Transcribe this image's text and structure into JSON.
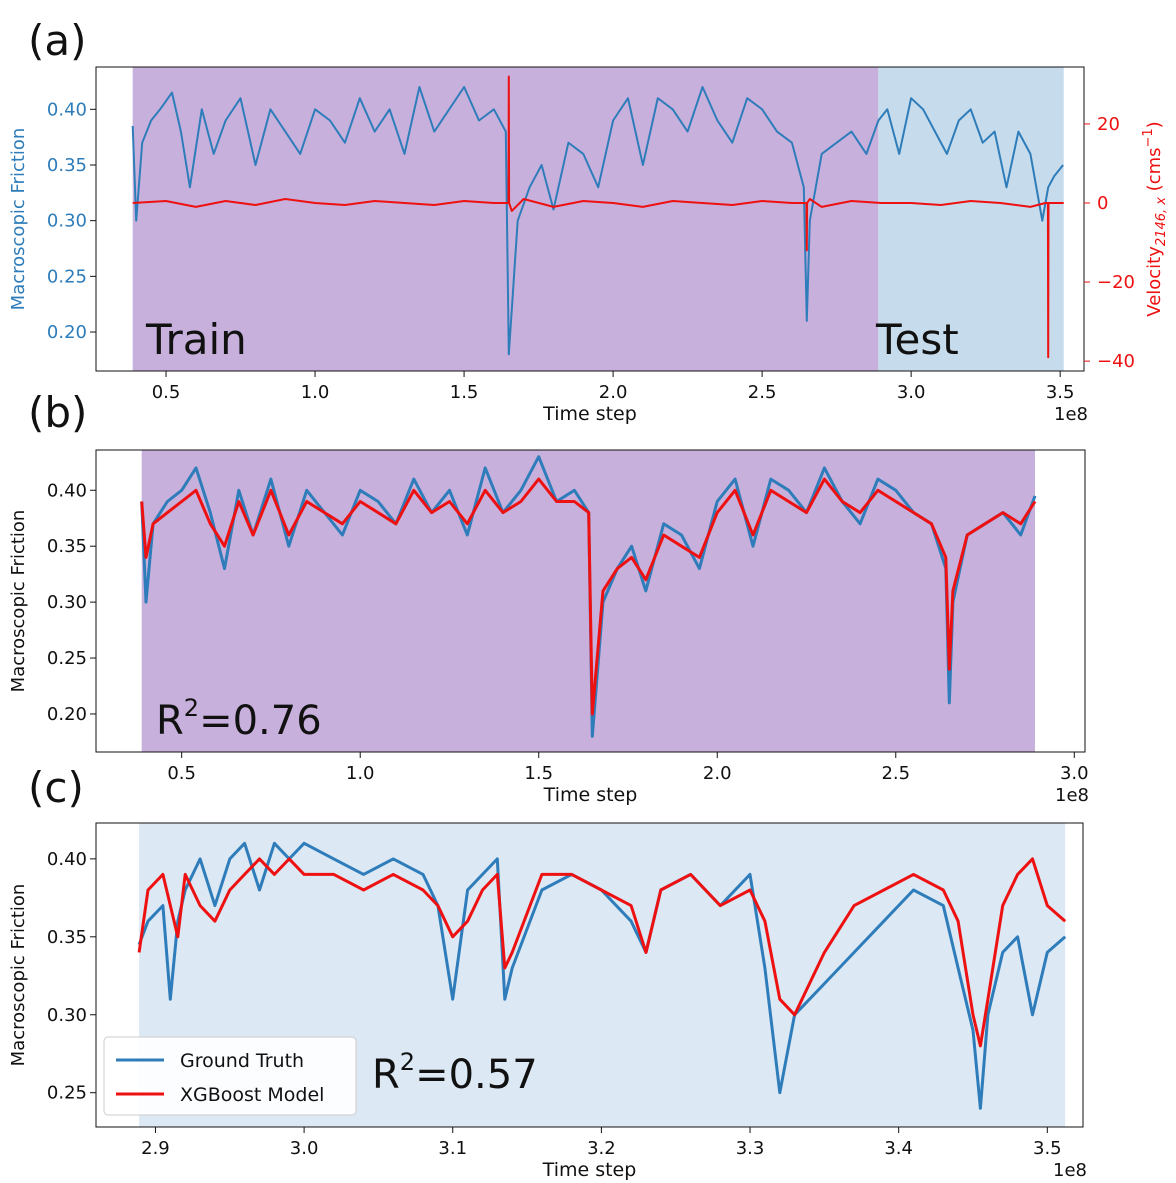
{
  "panels": [
    {
      "letter": "(a)",
      "chart_data": {
        "type": "line",
        "xlabel": "Time step",
        "x_scale_label": "1e8",
        "xlim": [
          0.265,
          3.58
        ],
        "xticks": [
          0.5,
          1.0,
          1.5,
          2.0,
          2.5,
          3.0,
          3.5
        ],
        "xtick_labels": [
          "0.5",
          "1.0",
          "1.5",
          "2.0",
          "2.5",
          "3.0",
          "3.5"
        ],
        "ylabel": "Macroscopic Friction",
        "ylim": [
          0.165,
          0.438
        ],
        "yticks": [
          0.2,
          0.25,
          0.3,
          0.35,
          0.4
        ],
        "ytick_labels": [
          "0.20",
          "0.25",
          "0.30",
          "0.35",
          "0.40"
        ],
        "y2label": "Velocity",
        "y2label_sub": "2146, x",
        "y2label_unit": "cms",
        "y2label_unit_sup": "−1",
        "y2lim": [
          -42.5,
          34.4
        ],
        "y2ticks": [
          -40,
          -20,
          0,
          20
        ],
        "y2tick_labels": [
          "−40",
          "−20",
          "0",
          "20"
        ],
        "regions": [
          {
            "label": "Train",
            "x0": 0.388,
            "x1": 2.89,
            "color": "#c8b0dc"
          },
          {
            "label": "Test",
            "x0": 2.89,
            "x1": 3.512,
            "color": "#c6dbeb"
          }
        ],
        "series": [
          {
            "color": "#2e7dba",
            "axis": "left",
            "x": [
              0.388,
              0.4,
              0.42,
              0.45,
              0.48,
              0.52,
              0.55,
              0.58,
              0.62,
              0.66,
              0.7,
              0.75,
              0.8,
              0.85,
              0.9,
              0.95,
              1.0,
              1.05,
              1.1,
              1.15,
              1.2,
              1.25,
              1.3,
              1.35,
              1.4,
              1.45,
              1.5,
              1.55,
              1.6,
              1.64,
              1.65,
              1.68,
              1.72,
              1.76,
              1.8,
              1.85,
              1.9,
              1.95,
              2.0,
              2.05,
              2.1,
              2.15,
              2.2,
              2.25,
              2.3,
              2.35,
              2.4,
              2.45,
              2.5,
              2.55,
              2.6,
              2.64,
              2.65,
              2.66,
              2.7,
              2.75,
              2.8,
              2.85,
              2.89,
              2.92,
              2.96,
              3.0,
              3.04,
              3.08,
              3.12,
              3.16,
              3.2,
              3.24,
              3.28,
              3.32,
              3.36,
              3.4,
              3.44,
              3.46,
              3.48,
              3.51
            ],
            "y": [
              0.385,
              0.3,
              0.37,
              0.39,
              0.4,
              0.415,
              0.38,
              0.33,
              0.4,
              0.36,
              0.39,
              0.41,
              0.35,
              0.4,
              0.38,
              0.36,
              0.4,
              0.39,
              0.37,
              0.41,
              0.38,
              0.4,
              0.36,
              0.42,
              0.38,
              0.4,
              0.42,
              0.39,
              0.4,
              0.38,
              0.18,
              0.3,
              0.33,
              0.35,
              0.31,
              0.37,
              0.36,
              0.33,
              0.39,
              0.41,
              0.35,
              0.41,
              0.4,
              0.38,
              0.42,
              0.39,
              0.37,
              0.41,
              0.4,
              0.38,
              0.37,
              0.33,
              0.21,
              0.3,
              0.36,
              0.37,
              0.38,
              0.36,
              0.39,
              0.4,
              0.36,
              0.41,
              0.4,
              0.38,
              0.36,
              0.39,
              0.4,
              0.37,
              0.38,
              0.33,
              0.38,
              0.36,
              0.3,
              0.33,
              0.34,
              0.35
            ]
          },
          {
            "color": "#ee1111",
            "axis": "right",
            "x": [
              0.388,
              0.5,
              0.6,
              0.7,
              0.8,
              0.9,
              1.0,
              1.1,
              1.2,
              1.3,
              1.4,
              1.5,
              1.6,
              1.64,
              1.649,
              1.65,
              1.651,
              1.66,
              1.7,
              1.8,
              1.9,
              2.0,
              2.1,
              2.2,
              2.3,
              2.4,
              2.5,
              2.6,
              2.64,
              2.649,
              2.65,
              2.651,
              2.66,
              2.7,
              2.8,
              2.9,
              3.0,
              3.1,
              3.2,
              3.3,
              3.4,
              3.45,
              3.459,
              3.46,
              3.461,
              3.47,
              3.512
            ],
            "y": [
              0,
              0.5,
              -1,
              0.5,
              -0.5,
              1,
              0,
              -0.5,
              0.5,
              0,
              -0.5,
              0.5,
              0,
              0,
              0,
              32,
              0,
              -2,
              1,
              -1,
              0.5,
              0,
              -1,
              0.5,
              0,
              -0.5,
              0.5,
              0,
              0,
              0,
              -12,
              0,
              1,
              -1,
              0.5,
              0,
              0,
              -0.5,
              0.5,
              0,
              -1,
              0,
              0,
              -39,
              0,
              0,
              0
            ]
          }
        ]
      }
    },
    {
      "letter": "(b)",
      "r2": "0.76",
      "chart_data": {
        "type": "line",
        "xlabel": "Time step",
        "x_scale_label": "1e8",
        "xlim": [
          0.26,
          3.03
        ],
        "xticks": [
          0.5,
          1.0,
          1.5,
          2.0,
          2.5,
          3.0
        ],
        "xtick_labels": [
          "0.5",
          "1.0",
          "1.5",
          "2.0",
          "2.5",
          "3.0"
        ],
        "ylabel": "Macroscopic Friction",
        "ylim": [
          0.166,
          0.436
        ],
        "yticks": [
          0.2,
          0.25,
          0.3,
          0.35,
          0.4
        ],
        "ytick_labels": [
          "0.20",
          "0.25",
          "0.30",
          "0.35",
          "0.40"
        ],
        "regions": [
          {
            "label": "",
            "x0": 0.388,
            "x1": 2.89,
            "color": "#c8b0dc"
          }
        ],
        "series": [
          {
            "color": "#2e7dba",
            "x": [
              0.388,
              0.4,
              0.42,
              0.46,
              0.5,
              0.54,
              0.58,
              0.62,
              0.66,
              0.7,
              0.75,
              0.8,
              0.85,
              0.9,
              0.95,
              1.0,
              1.05,
              1.1,
              1.15,
              1.2,
              1.25,
              1.3,
              1.35,
              1.4,
              1.45,
              1.5,
              1.55,
              1.6,
              1.64,
              1.65,
              1.68,
              1.72,
              1.76,
              1.8,
              1.85,
              1.9,
              1.95,
              2.0,
              2.05,
              2.1,
              2.15,
              2.2,
              2.25,
              2.3,
              2.35,
              2.4,
              2.45,
              2.5,
              2.55,
              2.6,
              2.64,
              2.65,
              2.66,
              2.7,
              2.75,
              2.8,
              2.85,
              2.89
            ],
            "y": [
              0.39,
              0.3,
              0.37,
              0.39,
              0.4,
              0.42,
              0.38,
              0.33,
              0.4,
              0.36,
              0.41,
              0.35,
              0.4,
              0.38,
              0.36,
              0.4,
              0.39,
              0.37,
              0.41,
              0.38,
              0.4,
              0.36,
              0.42,
              0.38,
              0.4,
              0.43,
              0.39,
              0.4,
              0.38,
              0.18,
              0.3,
              0.33,
              0.35,
              0.31,
              0.37,
              0.36,
              0.33,
              0.39,
              0.41,
              0.35,
              0.41,
              0.4,
              0.38,
              0.42,
              0.39,
              0.37,
              0.41,
              0.4,
              0.38,
              0.37,
              0.33,
              0.21,
              0.3,
              0.36,
              0.37,
              0.38,
              0.36,
              0.395
            ]
          },
          {
            "color": "#ee1111",
            "x": [
              0.388,
              0.4,
              0.42,
              0.46,
              0.5,
              0.54,
              0.58,
              0.62,
              0.66,
              0.7,
              0.75,
              0.8,
              0.85,
              0.9,
              0.95,
              1.0,
              1.05,
              1.1,
              1.15,
              1.2,
              1.25,
              1.3,
              1.35,
              1.4,
              1.45,
              1.5,
              1.55,
              1.6,
              1.64,
              1.65,
              1.68,
              1.72,
              1.76,
              1.8,
              1.85,
              1.9,
              1.95,
              2.0,
              2.05,
              2.1,
              2.15,
              2.2,
              2.25,
              2.3,
              2.35,
              2.4,
              2.45,
              2.5,
              2.55,
              2.6,
              2.64,
              2.65,
              2.66,
              2.7,
              2.75,
              2.8,
              2.85,
              2.89
            ],
            "y": [
              0.39,
              0.34,
              0.37,
              0.38,
              0.39,
              0.4,
              0.37,
              0.35,
              0.39,
              0.36,
              0.4,
              0.36,
              0.39,
              0.38,
              0.37,
              0.39,
              0.38,
              0.37,
              0.4,
              0.38,
              0.39,
              0.37,
              0.4,
              0.38,
              0.39,
              0.41,
              0.39,
              0.39,
              0.38,
              0.2,
              0.31,
              0.33,
              0.34,
              0.32,
              0.36,
              0.35,
              0.34,
              0.38,
              0.4,
              0.36,
              0.4,
              0.39,
              0.38,
              0.41,
              0.39,
              0.38,
              0.4,
              0.39,
              0.38,
              0.37,
              0.34,
              0.24,
              0.31,
              0.36,
              0.37,
              0.38,
              0.37,
              0.39
            ]
          }
        ]
      }
    },
    {
      "letter": "(c)",
      "r2": "0.57",
      "chart_data": {
        "type": "line",
        "xlabel": "Time step",
        "x_scale_label": "1e8",
        "xlim": [
          2.86,
          3.524
        ],
        "xticks": [
          2.9,
          3.0,
          3.1,
          3.2,
          3.3,
          3.4,
          3.5
        ],
        "xtick_labels": [
          "2.9",
          "3.0",
          "3.1",
          "3.2",
          "3.3",
          "3.4",
          "3.5"
        ],
        "ylabel": "Macroscopic Friction",
        "ylim": [
          0.228,
          0.423
        ],
        "yticks": [
          0.25,
          0.3,
          0.35,
          0.4
        ],
        "ytick_labels": [
          "0.25",
          "0.30",
          "0.35",
          "0.40"
        ],
        "regions": [
          {
            "label": "",
            "x0": 2.889,
            "x1": 3.512,
            "color": "#dce8f4"
          }
        ],
        "series": [
          {
            "name": "Ground Truth",
            "color": "#2e7dba",
            "x": [
              2.889,
              2.895,
              2.905,
              2.91,
              2.915,
              2.92,
              2.93,
              2.94,
              2.95,
              2.96,
              2.97,
              2.98,
              2.99,
              3.0,
              3.02,
              3.04,
              3.06,
              3.08,
              3.09,
              3.1,
              3.11,
              3.12,
              3.13,
              3.135,
              3.14,
              3.16,
              3.18,
              3.2,
              3.22,
              3.23,
              3.24,
              3.26,
              3.28,
              3.3,
              3.31,
              3.32,
              3.33,
              3.35,
              3.37,
              3.39,
              3.41,
              3.43,
              3.44,
              3.45,
              3.455,
              3.46,
              3.47,
              3.48,
              3.49,
              3.5,
              3.512
            ],
            "y": [
              0.345,
              0.36,
              0.37,
              0.31,
              0.36,
              0.38,
              0.4,
              0.37,
              0.4,
              0.41,
              0.38,
              0.41,
              0.4,
              0.41,
              0.4,
              0.39,
              0.4,
              0.39,
              0.37,
              0.31,
              0.38,
              0.39,
              0.4,
              0.31,
              0.33,
              0.38,
              0.39,
              0.38,
              0.36,
              0.34,
              0.38,
              0.39,
              0.37,
              0.39,
              0.33,
              0.25,
              0.3,
              0.32,
              0.34,
              0.36,
              0.38,
              0.37,
              0.33,
              0.29,
              0.24,
              0.3,
              0.34,
              0.35,
              0.3,
              0.34,
              0.35
            ]
          },
          {
            "name": "XGBoost Model",
            "color": "#ee1111",
            "x": [
              2.889,
              2.895,
              2.905,
              2.915,
              2.92,
              2.93,
              2.94,
              2.95,
              2.96,
              2.97,
              2.98,
              2.99,
              3.0,
              3.02,
              3.04,
              3.06,
              3.08,
              3.09,
              3.1,
              3.11,
              3.12,
              3.13,
              3.135,
              3.14,
              3.16,
              3.18,
              3.2,
              3.22,
              3.23,
              3.24,
              3.26,
              3.28,
              3.3,
              3.31,
              3.32,
              3.33,
              3.35,
              3.37,
              3.39,
              3.41,
              3.43,
              3.44,
              3.45,
              3.455,
              3.46,
              3.47,
              3.48,
              3.49,
              3.5,
              3.512
            ],
            "y": [
              0.34,
              0.38,
              0.39,
              0.35,
              0.39,
              0.37,
              0.36,
              0.38,
              0.39,
              0.4,
              0.39,
              0.4,
              0.39,
              0.39,
              0.38,
              0.39,
              0.38,
              0.37,
              0.35,
              0.36,
              0.38,
              0.39,
              0.33,
              0.34,
              0.39,
              0.39,
              0.38,
              0.37,
              0.34,
              0.38,
              0.39,
              0.37,
              0.38,
              0.36,
              0.31,
              0.3,
              0.34,
              0.37,
              0.38,
              0.39,
              0.38,
              0.36,
              0.3,
              0.28,
              0.31,
              0.37,
              0.39,
              0.4,
              0.37,
              0.36
            ]
          }
        ]
      }
    }
  ]
}
